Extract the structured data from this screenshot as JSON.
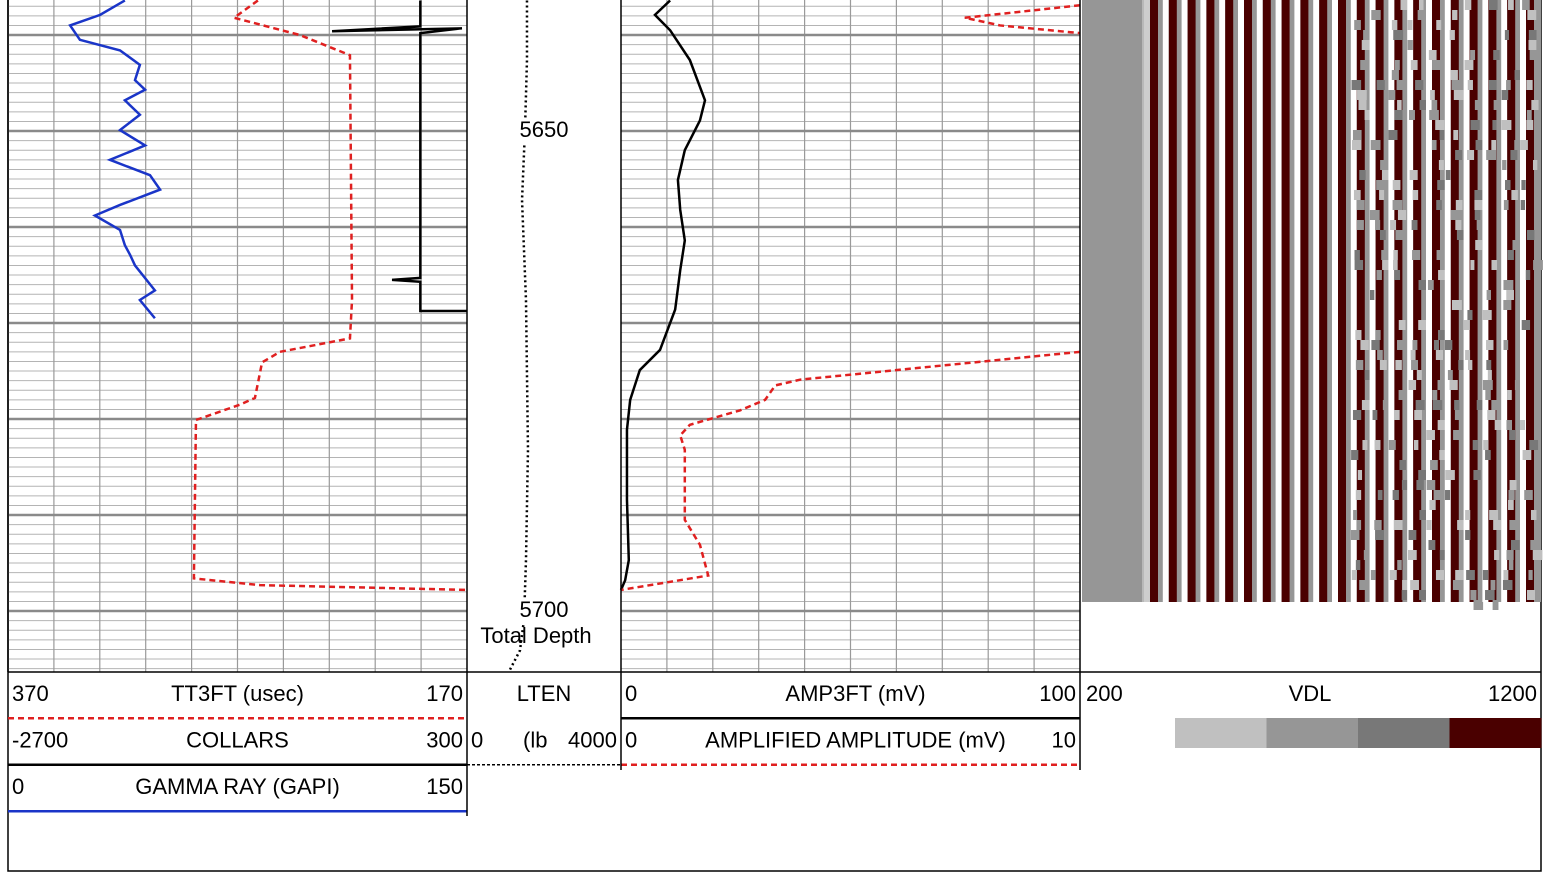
{
  "chart_data": [
    {
      "type": "line",
      "depth_range": [
        5636.35,
        5706.35
      ],
      "depth_grid": [
        5640,
        5650,
        5660,
        5670,
        5680,
        5690,
        5700
      ],
      "minor_step": 1,
      "grid_divisions": 10,
      "series": [
        {
          "name": "TT3FT (usec)",
          "xlim": [
            370,
            170
          ],
          "color": "#e02020",
          "dashed": true,
          "depths": [
            5636.4,
            5638.2,
            5640.0,
            5642.1,
            5667.6,
            5671.6,
            5673.0,
            5674.1,
            5677.8,
            5678.5,
            5680.1,
            5696.6,
            5697.3,
            5697.8
          ],
          "values": [
            261.1,
            271.5,
            242.8,
            221.0,
            220.1,
            221.0,
            251.5,
            259.3,
            262.4,
            268.9,
            288.1,
            289.0,
            260.2,
            170.0
          ]
        },
        {
          "name": "COLLARS",
          "xlim": [
            -2700,
            300
          ],
          "color": "#000000",
          "dashed": false,
          "depths": [
            5636.4,
            5639.1,
            5639.6,
            5639.3,
            5639.8,
            5665.3,
            5665.5,
            5665.7,
            5668.75,
            5668.75
          ],
          "values": [
            -5,
            -5,
            -582,
            267,
            -5,
            -5,
            -190,
            -5,
            -5,
            300
          ]
        },
        {
          "name": "GAMMA RAY (GAPI)",
          "xlim": [
            0,
            150
          ],
          "color": "#1a35c8",
          "dashed": false,
          "depths": [
            5636.4,
            5637.9,
            5639.0,
            5640.5,
            5641.6,
            5643.1,
            5644.7,
            5645.7,
            5646.8,
            5648.3,
            5649.9,
            5651.5,
            5653.0,
            5654.6,
            5656.1,
            5657.7,
            5658.8,
            5660.3,
            5661.9,
            5662.9,
            5664.0,
            5666.6,
            5667.6,
            5669.5
          ],
          "values": [
            38.2,
            30.1,
            20.3,
            23.5,
            36.6,
            43.1,
            41.5,
            44.8,
            38.2,
            43.1,
            36.6,
            44.8,
            33.3,
            46.4,
            49.7,
            36.6,
            28.4,
            36.6,
            38.2,
            39.9,
            41.5,
            48.0,
            43.1,
            48.0
          ]
        }
      ]
    },
    {
      "type": "depth",
      "depth_range": [
        5636.35,
        5706.35
      ],
      "depth_labels": [
        5650,
        5700
      ],
      "annotation": "Total Depth",
      "series": [
        {
          "name": "LTEN",
          "unit": "(lb",
          "xlim": [
            0,
            4000
          ],
          "color": "#000000",
          "dashed": true,
          "depths": [
            5636.4,
            5642.6,
            5649.9,
            5657.2,
            5667.6,
            5683.2,
            5694.7,
            5700.9,
            5704.1,
            5706.1
          ],
          "values": [
            1558,
            1558,
            1506,
            1429,
            1532,
            1584,
            1532,
            1481,
            1376,
            1117
          ]
        }
      ]
    },
    {
      "type": "line",
      "depth_range": [
        5636.35,
        5706.35
      ],
      "depth_grid": [
        5640,
        5650,
        5660,
        5670,
        5680,
        5690,
        5700
      ],
      "minor_step": 1,
      "grid_divisions": 10,
      "series": [
        {
          "name": "AMP3FT (mV)",
          "xlim": [
            0,
            100
          ],
          "color": "#000000",
          "dashed": false,
          "depths": [
            5636.4,
            5637.9,
            5639.5,
            5642.6,
            5646.8,
            5648.9,
            5652.0,
            5655.1,
            5658.2,
            5661.4,
            5664.5,
            5668.6,
            5672.8,
            5674.9,
            5678.0,
            5681.1,
            5688.4,
            5694.7,
            5696.8,
            5697.8
          ],
          "values": [
            10.7,
            7.4,
            10.7,
            15.0,
            18.3,
            17.2,
            13.9,
            12.4,
            12.9,
            13.9,
            12.9,
            11.8,
            8.5,
            4.1,
            2.0,
            1.3,
            1.3,
            1.7,
            0.9,
            0
          ]
        },
        {
          "name": "AMPLIFIED AMPLITUDE (mV)",
          "xlim": [
            0,
            10
          ],
          "color": "#e02020",
          "dashed": true,
          "depths": [
            5636.9,
            5638.2,
            5639.0,
            5639.8,
            null,
            5673.0,
            5675.9,
            5676.5,
            5678.0,
            5679.1,
            5680.6,
            5681.7,
            5683.2,
            5690.5,
            5693.1,
            5696.3,
            5697.8
          ],
          "values": [
            10,
            7.49,
            8.26,
            10,
            null,
            10,
            3.9,
            3.36,
            3.14,
            2.59,
            1.5,
            1.29,
            1.39,
            1.39,
            1.72,
            1.9,
            0
          ]
        }
      ]
    },
    {
      "type": "image",
      "name": "VDL",
      "xlim": [
        200,
        1200
      ],
      "colors": [
        "#c0c0c0",
        "#969696",
        "#787878",
        "#4a0000"
      ]
    }
  ]
}
